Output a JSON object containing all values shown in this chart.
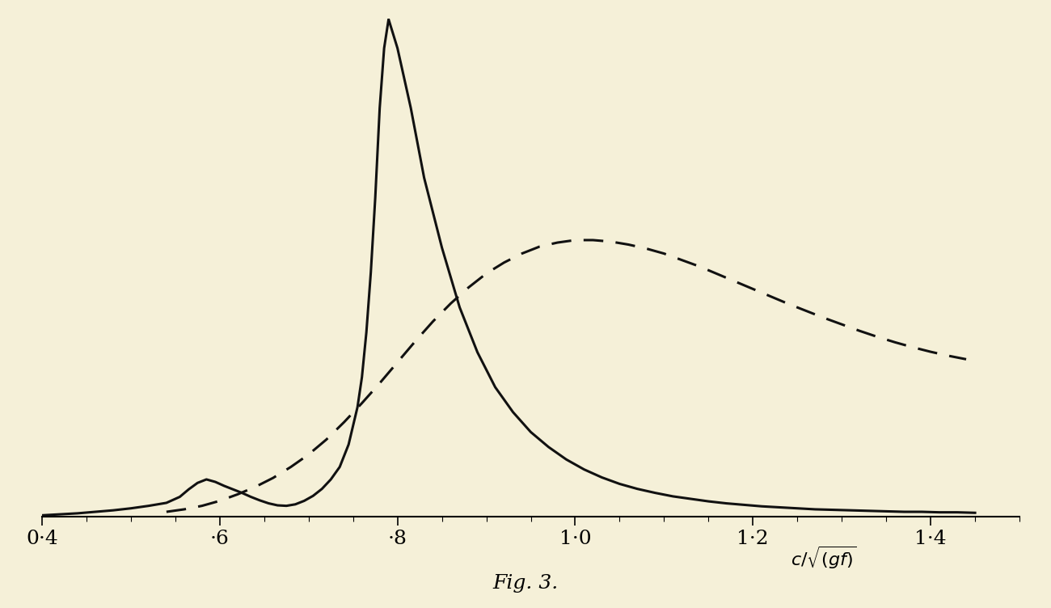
{
  "background_color": "#f5f0d8",
  "title": "Fig. 3.",
  "xlim": [
    0.4,
    1.5
  ],
  "ylim": [
    0,
    1.0
  ],
  "xticks": [
    0.4,
    0.6,
    0.8,
    1.0,
    1.2,
    1.4
  ],
  "xtick_labels": [
    "0·4",
    "·6",
    "·8",
    "1·0",
    "1·2",
    "1·4"
  ],
  "solid_color": "#111111",
  "dashed_color": "#111111",
  "solid_lw": 2.2,
  "dashed_lw": 2.2,
  "figsize": [
    13.0,
    7.52
  ],
  "dpi": 100,
  "x_solid": [
    0.4,
    0.42,
    0.44,
    0.46,
    0.48,
    0.5,
    0.52,
    0.54,
    0.555,
    0.565,
    0.575,
    0.585,
    0.595,
    0.605,
    0.615,
    0.625,
    0.635,
    0.645,
    0.655,
    0.665,
    0.675,
    0.685,
    0.695,
    0.705,
    0.715,
    0.725,
    0.735,
    0.745,
    0.755,
    0.76,
    0.765,
    0.77,
    0.775,
    0.78,
    0.785,
    0.79,
    0.8,
    0.815,
    0.83,
    0.85,
    0.87,
    0.89,
    0.91,
    0.93,
    0.95,
    0.97,
    0.99,
    1.01,
    1.03,
    1.05,
    1.07,
    1.09,
    1.11,
    1.13,
    1.15,
    1.17,
    1.19,
    1.21,
    1.23,
    1.25,
    1.27,
    1.29,
    1.31,
    1.33,
    1.35,
    1.37,
    1.39,
    1.41,
    1.43,
    1.45
  ],
  "y_solid": [
    0.003,
    0.005,
    0.007,
    0.01,
    0.013,
    0.017,
    0.022,
    0.028,
    0.04,
    0.055,
    0.068,
    0.075,
    0.07,
    0.062,
    0.055,
    0.048,
    0.04,
    0.033,
    0.027,
    0.023,
    0.022,
    0.025,
    0.032,
    0.042,
    0.056,
    0.075,
    0.1,
    0.145,
    0.22,
    0.28,
    0.37,
    0.49,
    0.64,
    0.82,
    0.94,
    0.998,
    0.94,
    0.82,
    0.68,
    0.54,
    0.42,
    0.33,
    0.26,
    0.21,
    0.17,
    0.14,
    0.115,
    0.095,
    0.079,
    0.066,
    0.056,
    0.048,
    0.041,
    0.036,
    0.031,
    0.027,
    0.024,
    0.021,
    0.019,
    0.017,
    0.015,
    0.014,
    0.013,
    0.012,
    0.011,
    0.01,
    0.01,
    0.009,
    0.009,
    0.008
  ],
  "x_dashed": [
    0.54,
    0.56,
    0.58,
    0.6,
    0.62,
    0.64,
    0.66,
    0.68,
    0.7,
    0.72,
    0.74,
    0.76,
    0.78,
    0.8,
    0.82,
    0.84,
    0.86,
    0.88,
    0.9,
    0.92,
    0.94,
    0.96,
    0.98,
    1.0,
    1.02,
    1.04,
    1.06,
    1.08,
    1.1,
    1.12,
    1.14,
    1.16,
    1.18,
    1.2,
    1.22,
    1.24,
    1.26,
    1.28,
    1.3,
    1.32,
    1.34,
    1.36,
    1.38,
    1.4,
    1.42,
    1.44
  ],
  "y_dashed": [
    0.01,
    0.015,
    0.022,
    0.032,
    0.045,
    0.06,
    0.078,
    0.1,
    0.125,
    0.155,
    0.19,
    0.228,
    0.268,
    0.31,
    0.352,
    0.392,
    0.428,
    0.46,
    0.488,
    0.51,
    0.528,
    0.542,
    0.55,
    0.555,
    0.555,
    0.552,
    0.546,
    0.538,
    0.528,
    0.515,
    0.502,
    0.487,
    0.472,
    0.457,
    0.442,
    0.427,
    0.413,
    0.399,
    0.386,
    0.373,
    0.361,
    0.35,
    0.34,
    0.331,
    0.323,
    0.316
  ]
}
